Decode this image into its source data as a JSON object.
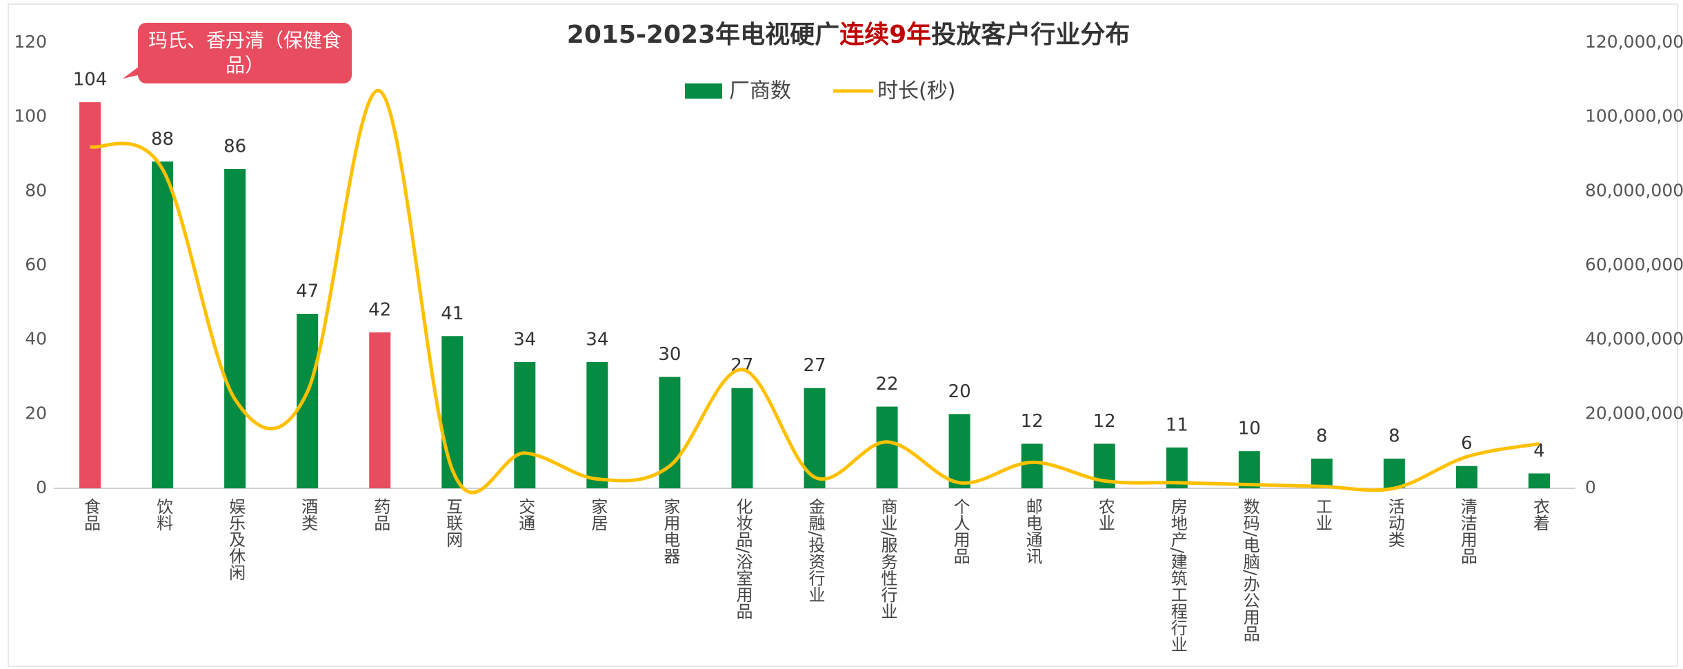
{
  "chart_data": {
    "type": "bar",
    "title": [
      "2015-2023年电视硬广",
      "连续9年",
      "投放客户行业分布"
    ],
    "title_colors": [
      "#333333",
      "#c00000",
      "#333333"
    ],
    "annotation": "玛氏、香丹清（保健食品）",
    "categories": [
      "食品",
      "饮料",
      "娱乐及休闲",
      "酒类",
      "药品",
      "互联网",
      "交通",
      "家居",
      "家用电器",
      "化妆品/浴室用品",
      "金融/投资行业",
      "商业/服务性行业",
      "个人用品",
      "邮电通讯",
      "农业",
      "房地产/建筑工程行业",
      "数码/电脑/办公用品",
      "工业",
      "活动类",
      "清洁用品",
      "衣着"
    ],
    "series": [
      {
        "name": "厂商数",
        "type": "bar",
        "color": "#058c42",
        "colors": [
          "#e84c5f",
          "#058c42",
          "#058c42",
          "#058c42",
          "#e84c5f",
          "#058c42",
          "#058c42",
          "#058c42",
          "#058c42",
          "#058c42",
          "#058c42",
          "#058c42",
          "#058c42",
          "#058c42",
          "#058c42",
          "#058c42",
          "#058c42",
          "#058c42",
          "#058c42",
          "#058c42",
          "#058c42"
        ],
        "values": [
          104,
          88,
          86,
          47,
          42,
          41,
          34,
          34,
          30,
          27,
          27,
          22,
          20,
          12,
          12,
          11,
          10,
          8,
          8,
          6,
          4
        ]
      },
      {
        "name": "时长(秒)",
        "type": "line",
        "axis": "y2",
        "color": "#ffc000",
        "values": [
          92000000,
          86000000,
          24000000,
          26000000,
          107000000,
          5000000,
          9500000,
          2500000,
          6000000,
          32000000,
          3000000,
          12500000,
          1500000,
          7000000,
          2000000,
          1500000,
          1000000,
          500000,
          0,
          8500000,
          12000000
        ]
      }
    ],
    "ylim": [
      0,
      120
    ],
    "yticks": [
      0,
      20,
      40,
      60,
      80,
      100,
      120
    ],
    "y2lim": [
      0,
      120000000
    ],
    "y2ticks": [
      {
        "value": 0,
        "label": "0"
      },
      {
        "value": 20000000,
        "label": "20,000,000"
      },
      {
        "value": 40000000,
        "label": "40,000,000"
      },
      {
        "value": 60000000,
        "label": "60,000,000"
      },
      {
        "value": 80000000,
        "label": "80,000,000"
      },
      {
        "value": 100000000,
        "label": "100,000,000"
      },
      {
        "value": 120000000,
        "label": "120,000,000"
      }
    ],
    "grid": false,
    "legend": "top"
  }
}
